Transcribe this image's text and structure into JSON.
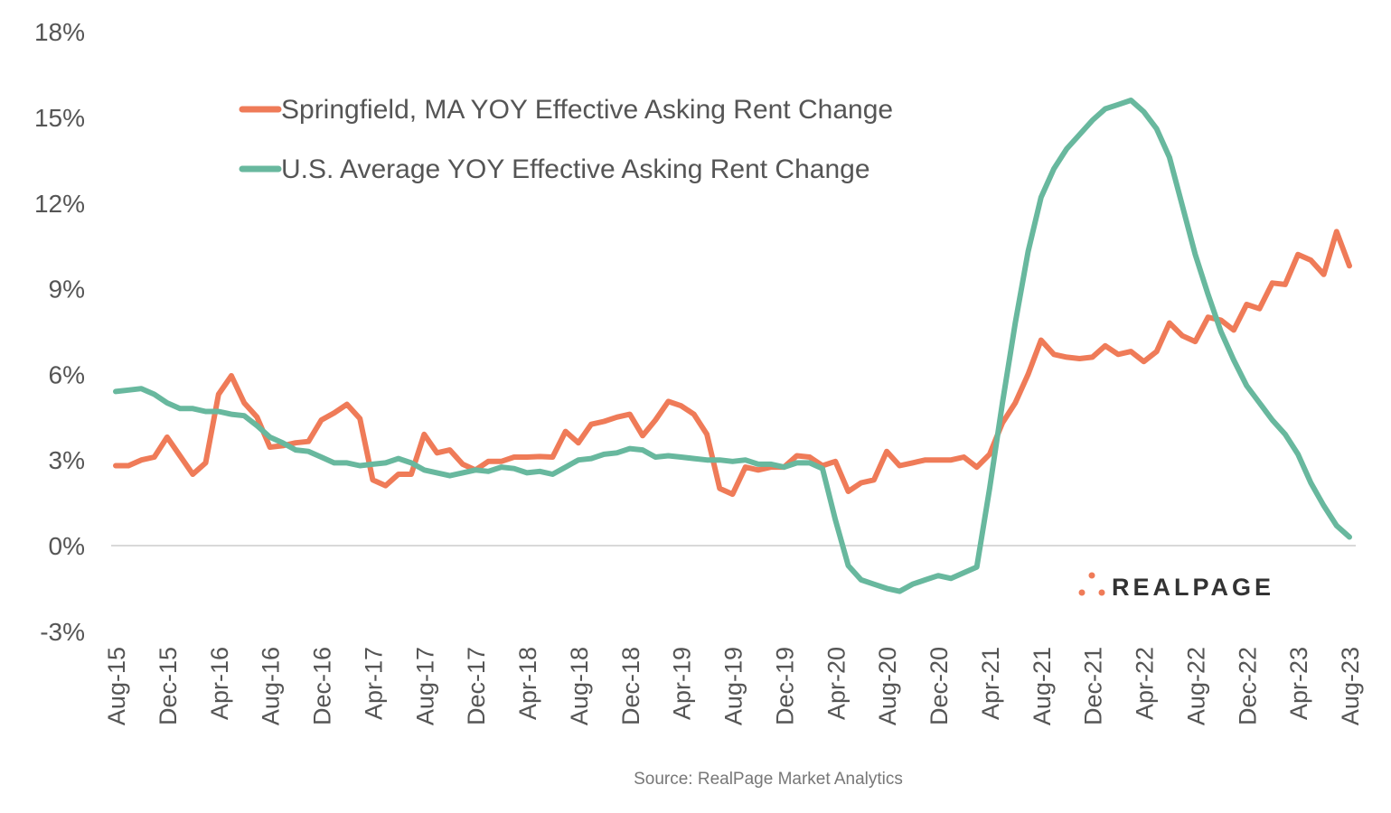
{
  "chart_data": {
    "type": "line",
    "title": "",
    "xlabel": "",
    "ylabel": "",
    "ylim": [
      -3,
      18
    ],
    "yticks": [
      -3,
      0,
      3,
      6,
      9,
      12,
      15,
      18
    ],
    "ytick_labels": [
      "-3%",
      "0%",
      "3%",
      "6%",
      "9%",
      "12%",
      "15%",
      "18%"
    ],
    "x_start": "Aug-15",
    "x_end": "Aug-23",
    "x_frequency": "monthly",
    "xtick_labels": [
      "Aug-15",
      "Dec-15",
      "Apr-16",
      "Aug-16",
      "Dec-16",
      "Apr-17",
      "Aug-17",
      "Dec-17",
      "Apr-18",
      "Aug-18",
      "Dec-18",
      "Apr-19",
      "Aug-19",
      "Dec-19",
      "Apr-20",
      "Aug-20",
      "Dec-20",
      "Apr-21",
      "Aug-21",
      "Dec-21",
      "Apr-22",
      "Aug-22",
      "Dec-22",
      "Apr-23",
      "Aug-23"
    ],
    "grid": false,
    "legend_position": "top-left",
    "series": [
      {
        "name": "Springfield, MA YOY Effective Asking Rent Change",
        "color": "#ef7b58",
        "values": [
          2.8,
          2.8,
          3.0,
          3.1,
          3.8,
          3.15,
          2.5,
          2.9,
          5.3,
          5.95,
          5.0,
          4.5,
          3.45,
          3.5,
          3.6,
          3.65,
          4.4,
          4.65,
          4.95,
          4.45,
          2.3,
          2.1,
          2.5,
          2.5,
          3.9,
          3.25,
          3.35,
          2.85,
          2.65,
          2.95,
          2.95,
          3.1,
          3.1,
          3.12,
          3.1,
          4.0,
          3.6,
          4.25,
          4.35,
          4.5,
          4.6,
          3.85,
          4.4,
          5.05,
          4.9,
          4.6,
          3.9,
          2.0,
          1.8,
          2.75,
          2.65,
          2.75,
          2.75,
          3.15,
          3.1,
          2.8,
          2.95,
          1.9,
          2.2,
          2.3,
          3.3,
          2.8,
          2.9,
          3.0,
          3.0,
          3.0,
          3.1,
          2.75,
          3.2,
          4.3,
          5.0,
          6.0,
          7.2,
          6.7,
          6.6,
          6.55,
          6.6,
          7.0,
          6.7,
          6.8,
          6.45,
          6.8,
          7.8,
          7.35,
          7.15,
          8.0,
          7.9,
          7.55,
          8.45,
          8.3,
          9.2,
          9.15,
          10.2,
          10.0,
          9.5,
          11.0,
          9.8
        ]
      },
      {
        "name": "U.S. Average YOY Effective Asking Rent Change",
        "color": "#68b89e",
        "values": [
          5.4,
          5.45,
          5.5,
          5.3,
          5.0,
          4.8,
          4.8,
          4.7,
          4.7,
          4.6,
          4.55,
          4.2,
          3.8,
          3.6,
          3.35,
          3.3,
          3.1,
          2.9,
          2.9,
          2.8,
          2.85,
          2.9,
          3.05,
          2.9,
          2.65,
          2.55,
          2.45,
          2.55,
          2.65,
          2.6,
          2.75,
          2.7,
          2.55,
          2.6,
          2.5,
          2.75,
          3.0,
          3.05,
          3.2,
          3.25,
          3.4,
          3.35,
          3.1,
          3.15,
          3.1,
          3.05,
          3.0,
          3.0,
          2.95,
          3.0,
          2.85,
          2.85,
          2.75,
          2.9,
          2.9,
          2.7,
          0.9,
          -0.7,
          -1.2,
          -1.35,
          -1.5,
          -1.6,
          -1.35,
          -1.2,
          -1.05,
          -1.15,
          -0.95,
          -0.75,
          2.0,
          5.0,
          7.8,
          10.3,
          12.2,
          13.2,
          13.9,
          14.4,
          14.9,
          15.3,
          15.45,
          15.6,
          15.2,
          14.6,
          13.6,
          11.9,
          10.2,
          8.8,
          7.5,
          6.5,
          5.6,
          5.0,
          4.4,
          3.9,
          3.2,
          2.2,
          1.4,
          0.7,
          0.3
        ]
      }
    ],
    "source": "Source: RealPage Market Analytics",
    "logo_text": "REALPAGE"
  }
}
